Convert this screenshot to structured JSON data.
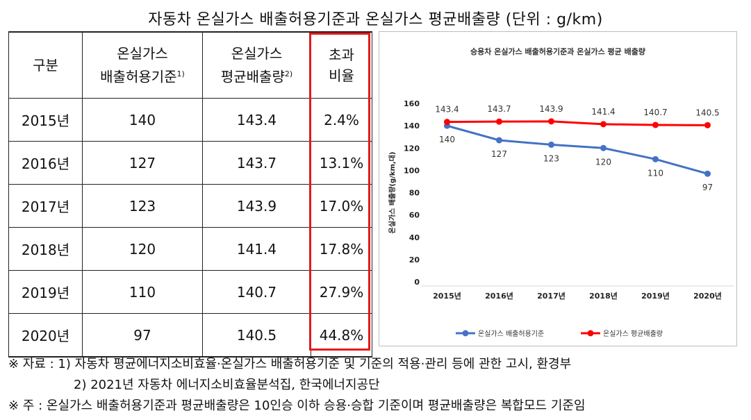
{
  "title": "자동차 온실가스 배출허용기준과 온실가스 평균배출량 (단위 : g/km)",
  "table": {
    "headers": [
      {
        "lines": [
          "구분"
        ],
        "sup": ""
      },
      {
        "lines": [
          "온실가스",
          "배출허용기준"
        ],
        "sup": "1)"
      },
      {
        "lines": [
          "온실가스",
          "평균배출량"
        ],
        "sup": "2)"
      },
      {
        "lines": [
          "초과",
          "비율"
        ],
        "sup": ""
      }
    ],
    "rows": [
      {
        "year": "2015년",
        "standard": "140",
        "average": "143.4",
        "ratio": "2.4%",
        "bold": false
      },
      {
        "year": "2016년",
        "standard": "127",
        "average": "143.7",
        "ratio": "13.1%",
        "bold": false
      },
      {
        "year": "2017년",
        "standard": "123",
        "average": "143.9",
        "ratio": "17.0%",
        "bold": false
      },
      {
        "year": "2018년",
        "standard": "120",
        "average": "141.4",
        "ratio": "17.8%",
        "bold": false
      },
      {
        "year": "2019년",
        "standard": "110",
        "average": "140.7",
        "ratio": "27.9%",
        "bold": true
      },
      {
        "year": "2020년",
        "standard": "97",
        "average": "140.5",
        "ratio": "44.8%",
        "bold": true
      }
    ]
  },
  "highlight_color": "#e41a1c",
  "chart_data": {
    "type": "line",
    "title": "승용차 온실가스 배출허용기준과 온실가스 평균 배출량",
    "ylabel": "온실가스 배출량(g/km,대)",
    "xlabel": "",
    "categories": [
      "2015년",
      "2016년",
      "2017년",
      "2018년",
      "2019년",
      "2020년"
    ],
    "ylim": [
      0,
      160
    ],
    "yticks": [
      0,
      20,
      40,
      60,
      80,
      100,
      120,
      140,
      160
    ],
    "grid": false,
    "legend": "bottom",
    "series": [
      {
        "name": "온실가스 배출허용기준",
        "color": "#4472c4",
        "values": [
          140,
          127,
          123,
          120,
          110,
          97
        ],
        "labels": [
          "140",
          "127",
          "123",
          "120",
          "110",
          "97"
        ]
      },
      {
        "name": "온실가스 평균배출량",
        "color": "#ff0000",
        "values": [
          143.4,
          143.7,
          143.9,
          141.4,
          140.7,
          140.5
        ],
        "labels": [
          "143.4",
          "143.7",
          "143.9",
          "141.4",
          "140.7",
          "140.5"
        ]
      }
    ]
  },
  "notes": {
    "line1": "※ 자료 : 1) 자동차 평균에너지소비효율·온실가스 배출허용기준 및 기준의 적용·관리 등에 관한 고시, 환경부",
    "line2": "2) 2021년 자동차 에너지소비효율분석집, 한국에너지공단",
    "line3": "※ 주 : 온실가스 배출허용기준과 평균배출량은 10인승 이하 승용·승합 기준이며 평균배출량은 복합모드 기준임"
  }
}
